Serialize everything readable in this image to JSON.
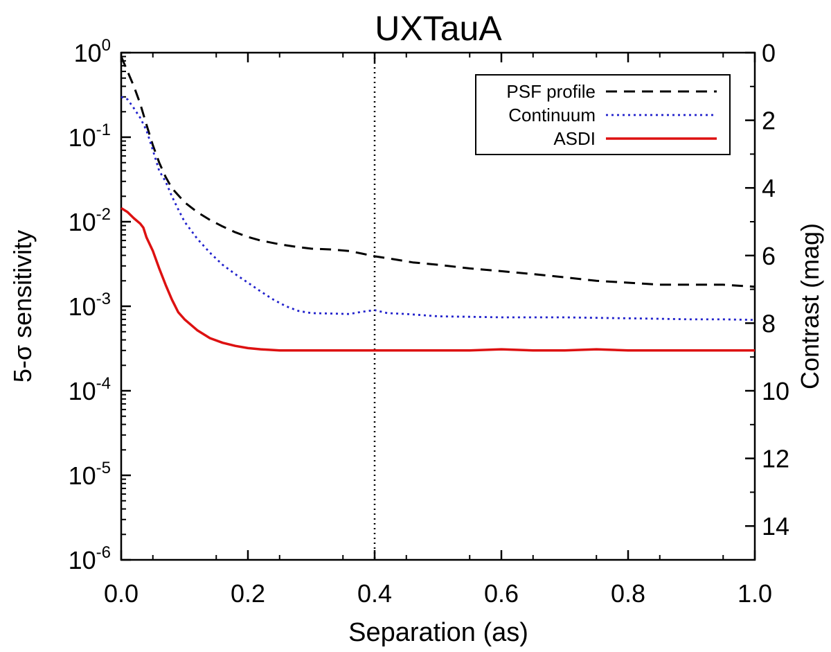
{
  "chart_data": {
    "type": "line",
    "title": "UXTauA",
    "xlabel": "Separation (as)",
    "ylabel": "5-σ sensitivity",
    "ylabel_right": "Contrast (mag)",
    "xlim": [
      0.0,
      1.0
    ],
    "ylim": [
      1e-06,
      1.0
    ],
    "yscale": "log",
    "ylim_right": [
      0,
      15
    ],
    "x_ticks": [
      0.0,
      0.2,
      0.4,
      0.6,
      0.8,
      1.0
    ],
    "x_tick_labels": [
      "0.0",
      "0.2",
      "0.4",
      "0.6",
      "0.8",
      "1.0"
    ],
    "y_ticks": [
      {
        "base": "10",
        "exp": "0"
      },
      {
        "base": "10",
        "exp": "-1"
      },
      {
        "base": "10",
        "exp": "-2"
      },
      {
        "base": "10",
        "exp": "-3"
      },
      {
        "base": "10",
        "exp": "-4"
      },
      {
        "base": "10",
        "exp": "-5"
      },
      {
        "base": "10",
        "exp": "-6"
      }
    ],
    "y_right_ticks": [
      "0",
      "2",
      "4",
      "6",
      "8",
      "10",
      "12",
      "14"
    ],
    "vline_x": 0.4,
    "legend_position": "top-right",
    "series": [
      {
        "name": "PSF profile",
        "color": "#000000",
        "style": "dashed",
        "x": [
          0.0,
          0.01,
          0.02,
          0.03,
          0.04,
          0.05,
          0.06,
          0.07,
          0.08,
          0.1,
          0.12,
          0.14,
          0.16,
          0.18,
          0.2,
          0.22,
          0.25,
          0.28,
          0.3,
          0.33,
          0.36,
          0.38,
          0.4,
          0.43,
          0.46,
          0.5,
          0.55,
          0.6,
          0.65,
          0.7,
          0.75,
          0.8,
          0.85,
          0.9,
          0.95,
          1.0
        ],
        "values": [
          0.9,
          0.6,
          0.4,
          0.25,
          0.14,
          0.08,
          0.05,
          0.034,
          0.025,
          0.017,
          0.013,
          0.0105,
          0.0088,
          0.0075,
          0.0066,
          0.006,
          0.0054,
          0.005,
          0.0048,
          0.0047,
          0.0045,
          0.0042,
          0.0039,
          0.0036,
          0.0033,
          0.0031,
          0.0028,
          0.0026,
          0.0024,
          0.0022,
          0.002,
          0.0019,
          0.0018,
          0.0018,
          0.0018,
          0.0017
        ]
      },
      {
        "name": "Continuum",
        "color": "#2222cc",
        "style": "dotted",
        "x": [
          0.0,
          0.01,
          0.02,
          0.03,
          0.04,
          0.05,
          0.06,
          0.07,
          0.08,
          0.09,
          0.1,
          0.12,
          0.14,
          0.16,
          0.18,
          0.2,
          0.22,
          0.24,
          0.26,
          0.28,
          0.3,
          0.33,
          0.36,
          0.38,
          0.4,
          0.42,
          0.45,
          0.5,
          0.55,
          0.6,
          0.65,
          0.7,
          0.75,
          0.8,
          0.85,
          0.9,
          0.95,
          1.0
        ],
        "values": [
          0.3,
          0.28,
          0.22,
          0.17,
          0.12,
          0.07,
          0.04,
          0.03,
          0.02,
          0.014,
          0.01,
          0.0063,
          0.0043,
          0.0031,
          0.0024,
          0.0019,
          0.0015,
          0.0012,
          0.001,
          0.00088,
          0.00083,
          0.00082,
          0.00081,
          0.00086,
          0.0009,
          0.00083,
          0.00081,
          0.00076,
          0.00075,
          0.00074,
          0.00074,
          0.00074,
          0.00073,
          0.00072,
          0.00071,
          0.0007,
          0.0007,
          0.00069
        ]
      },
      {
        "name": "ASDI",
        "color": "#dd1111",
        "style": "solid",
        "x": [
          0.0,
          0.01,
          0.02,
          0.03,
          0.035,
          0.04,
          0.05,
          0.06,
          0.07,
          0.08,
          0.09,
          0.1,
          0.12,
          0.14,
          0.16,
          0.18,
          0.2,
          0.22,
          0.25,
          0.28,
          0.3,
          0.35,
          0.4,
          0.45,
          0.5,
          0.55,
          0.6,
          0.65,
          0.7,
          0.75,
          0.8,
          0.85,
          0.9,
          0.95,
          1.0
        ],
        "values": [
          0.0145,
          0.013,
          0.011,
          0.0095,
          0.0085,
          0.0065,
          0.0045,
          0.0028,
          0.0018,
          0.0012,
          0.00085,
          0.0007,
          0.00052,
          0.00042,
          0.00037,
          0.00034,
          0.00032,
          0.00031,
          0.0003,
          0.0003,
          0.0003,
          0.0003,
          0.0003,
          0.0003,
          0.0003,
          0.0003,
          0.00031,
          0.0003,
          0.0003,
          0.00031,
          0.0003,
          0.0003,
          0.0003,
          0.0003,
          0.0003
        ]
      }
    ]
  }
}
